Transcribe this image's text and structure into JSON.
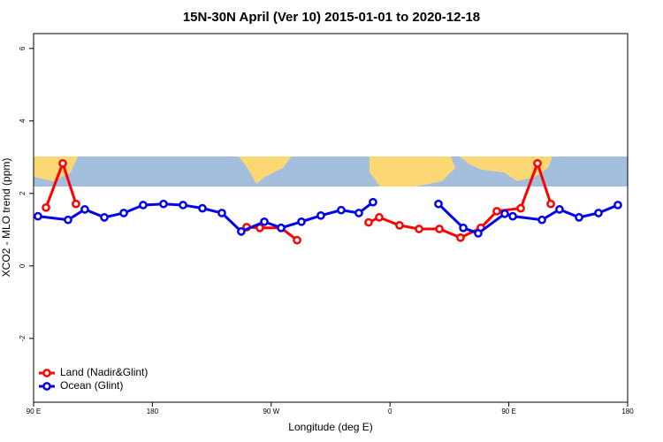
{
  "chart_data": {
    "type": "line",
    "title": "15N-30N April (Ver 10)   2015-01-01 to 2020-12-18",
    "x_label": "Longitude (deg E)",
    "y_label": "XCO2 - MLO trend (ppm)",
    "xlim": [
      90,
      540
    ],
    "xticks": [
      {
        "value": 90,
        "label": "90 E"
      },
      180,
      {
        "value": 270,
        "label": "90 W"
      },
      {
        "value": 360,
        "label": "0"
      },
      {
        "value": 450,
        "label": "90 E"
      },
      {
        "value": 540,
        "label": "180"
      }
    ],
    "ylim": [
      -3.76,
      6.41
    ],
    "yticks": [
      -2,
      0,
      2,
      4,
      6
    ],
    "legend": "bottom-left",
    "series": [
      {
        "name": "Land (Nadir&Glint)",
        "color": "#ff0000",
        "x": [
          99.4,
          112.1,
          122.1,
          null,
          251.4,
          261.4,
          277.5,
          289.6,
          null,
          343.8,
          351.8,
          367.2,
          382.0,
          397.4,
          413.4,
          428.8,
          440.9,
          459.0,
          471.7,
          481.8
        ],
        "values": [
          1.61,
          2.83,
          1.71,
          null,
          1.07,
          1.05,
          1.05,
          0.71,
          null,
          1.2,
          1.34,
          1.12,
          1.02,
          1.02,
          0.78,
          1.05,
          1.51,
          1.59,
          2.83,
          1.71
        ]
      },
      {
        "name": "Ocean (Glint)",
        "color": "#0000ee",
        "x": [
          93.3,
          116.1,
          128.8,
          143.6,
          158.3,
          173.0,
          188.4,
          203.2,
          217.9,
          232.6,
          247.3,
          264.8,
          277.5,
          292.9,
          307.6,
          323.0,
          336.4,
          347.1,
          null,
          396.7,
          415.5,
          426.8,
          446.9,
          453.0,
          475.1,
          488.4,
          503.2,
          517.9,
          532.6
        ],
        "values": [
          1.37,
          1.27,
          1.56,
          1.34,
          1.46,
          1.68,
          1.71,
          1.68,
          1.59,
          1.46,
          0.95,
          1.22,
          1.05,
          1.22,
          1.39,
          1.54,
          1.46,
          1.76,
          null,
          1.71,
          1.05,
          0.9,
          1.44,
          1.37,
          1.27,
          1.56,
          1.34,
          1.46,
          1.68
        ]
      }
    ]
  }
}
